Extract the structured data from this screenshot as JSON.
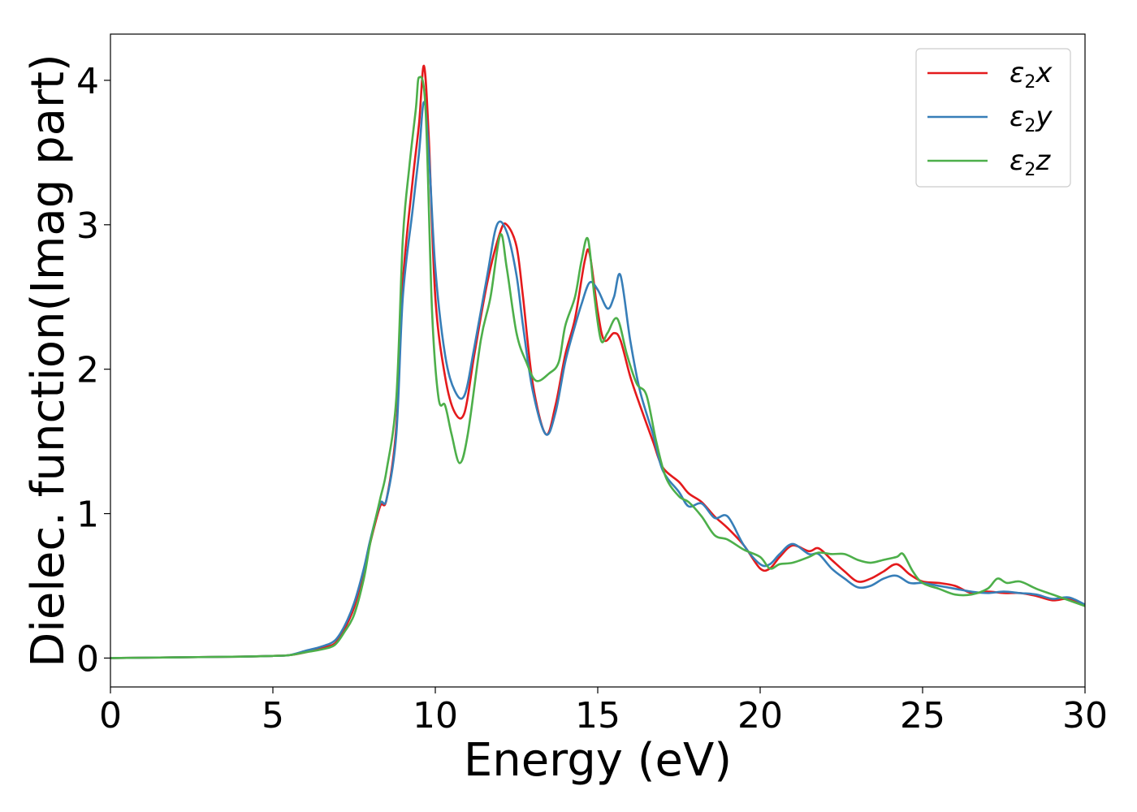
{
  "chart_data": {
    "type": "line",
    "xlabel": "Energy (eV)",
    "ylabel": "Dielec. function(Imag part)",
    "xlim": [
      0,
      30
    ],
    "ylim": [
      -0.2,
      4.32
    ],
    "xticks": [
      0,
      5,
      10,
      15,
      20,
      25,
      30
    ],
    "yticks": [
      0,
      1,
      2,
      3,
      4
    ],
    "grid": false,
    "legend_position": "top-right",
    "series": [
      {
        "name": "ε2x",
        "legend": {
          "base": "ε",
          "sub": "2",
          "var": "x"
        },
        "color": "#e41a1c",
        "x": [
          0,
          2,
          4,
          5,
          5.5,
          6,
          6.5,
          6.9,
          7.2,
          7.5,
          7.8,
          8.0,
          8.3,
          8.5,
          8.8,
          9.0,
          9.3,
          9.5,
          9.65,
          9.8,
          10.0,
          10.3,
          10.6,
          10.9,
          11.2,
          11.6,
          12.0,
          12.2,
          12.5,
          12.7,
          13.0,
          13.4,
          13.7,
          14.0,
          14.3,
          14.6,
          14.75,
          15.0,
          15.2,
          15.5,
          15.7,
          16.0,
          16.3,
          16.7,
          17.0,
          17.5,
          17.8,
          18.2,
          18.6,
          19.0,
          19.5,
          20.0,
          20.3,
          20.6,
          21.0,
          21.5,
          21.8,
          22.2,
          22.6,
          23.0,
          23.4,
          23.8,
          24.2,
          24.6,
          25.0,
          25.5,
          26.0,
          26.5,
          27.0,
          27.5,
          28.0,
          28.5,
          29.0,
          29.5,
          30.0
        ],
        "values": [
          0.0,
          0.005,
          0.01,
          0.015,
          0.02,
          0.04,
          0.07,
          0.1,
          0.2,
          0.35,
          0.6,
          0.8,
          1.05,
          1.1,
          1.6,
          2.6,
          3.3,
          3.7,
          4.1,
          3.6,
          2.5,
          1.95,
          1.7,
          1.7,
          2.1,
          2.6,
          2.95,
          3.0,
          2.85,
          2.5,
          1.9,
          1.55,
          1.75,
          2.1,
          2.35,
          2.75,
          2.8,
          2.4,
          2.2,
          2.25,
          2.2,
          1.95,
          1.75,
          1.5,
          1.32,
          1.22,
          1.14,
          1.08,
          0.98,
          0.9,
          0.78,
          0.62,
          0.62,
          0.7,
          0.78,
          0.74,
          0.76,
          0.68,
          0.6,
          0.53,
          0.55,
          0.6,
          0.65,
          0.58,
          0.53,
          0.52,
          0.5,
          0.45,
          0.46,
          0.45,
          0.45,
          0.43,
          0.4,
          0.41,
          0.37
        ]
      },
      {
        "name": "ε2y",
        "legend": {
          "base": "ε",
          "sub": "2",
          "var": "y"
        },
        "color": "#377eb8",
        "x": [
          0,
          2,
          4,
          5,
          5.5,
          6,
          6.5,
          6.9,
          7.2,
          7.5,
          7.8,
          8.0,
          8.3,
          8.5,
          8.8,
          9.0,
          9.3,
          9.5,
          9.65,
          9.8,
          10.0,
          10.3,
          10.6,
          10.9,
          11.2,
          11.6,
          11.9,
          12.2,
          12.5,
          12.7,
          13.0,
          13.4,
          13.7,
          14.0,
          14.3,
          14.5,
          14.75,
          15.0,
          15.3,
          15.5,
          15.7,
          16.0,
          16.3,
          16.7,
          17.0,
          17.5,
          17.8,
          18.2,
          18.6,
          19.0,
          19.5,
          20.0,
          20.3,
          20.6,
          21.0,
          21.5,
          21.8,
          22.2,
          22.6,
          23.0,
          23.4,
          23.8,
          24.2,
          24.6,
          25.0,
          25.5,
          26.0,
          26.5,
          27.0,
          27.5,
          28.0,
          28.5,
          29.0,
          29.5,
          30.0
        ],
        "values": [
          0.0,
          0.005,
          0.01,
          0.015,
          0.02,
          0.05,
          0.08,
          0.12,
          0.22,
          0.38,
          0.62,
          0.82,
          1.07,
          1.1,
          1.55,
          2.5,
          3.1,
          3.5,
          3.85,
          3.5,
          2.7,
          2.1,
          1.85,
          1.82,
          2.15,
          2.65,
          3.0,
          2.95,
          2.65,
          2.3,
          1.85,
          1.55,
          1.7,
          2.05,
          2.3,
          2.45,
          2.6,
          2.55,
          2.42,
          2.5,
          2.65,
          2.2,
          1.85,
          1.55,
          1.3,
          1.15,
          1.05,
          1.07,
          0.97,
          0.98,
          0.78,
          0.65,
          0.65,
          0.72,
          0.79,
          0.72,
          0.72,
          0.62,
          0.55,
          0.49,
          0.5,
          0.55,
          0.57,
          0.52,
          0.52,
          0.5,
          0.48,
          0.46,
          0.45,
          0.46,
          0.45,
          0.44,
          0.41,
          0.42,
          0.37
        ]
      },
      {
        "name": "ε2z",
        "legend": {
          "base": "ε",
          "sub": "2",
          "var": "z"
        },
        "color": "#4daf4a",
        "x": [
          0,
          2,
          4,
          5,
          5.5,
          6,
          6.5,
          6.9,
          7.2,
          7.5,
          7.8,
          8.0,
          8.3,
          8.5,
          8.8,
          9.0,
          9.2,
          9.4,
          9.5,
          9.7,
          9.9,
          10.1,
          10.3,
          10.5,
          10.75,
          11.0,
          11.4,
          11.7,
          12.0,
          12.2,
          12.5,
          12.8,
          13.1,
          13.5,
          13.8,
          14.0,
          14.3,
          14.5,
          14.7,
          14.9,
          15.1,
          15.3,
          15.6,
          15.9,
          16.2,
          16.5,
          16.8,
          17.1,
          17.5,
          17.8,
          18.2,
          18.6,
          19.0,
          19.5,
          20.0,
          20.3,
          20.6,
          21.0,
          21.5,
          21.8,
          22.2,
          22.6,
          23.0,
          23.4,
          23.8,
          24.2,
          24.4,
          24.7,
          25.0,
          25.5,
          26.0,
          26.5,
          27.0,
          27.3,
          27.6,
          28.0,
          28.5,
          29.0,
          29.5,
          30.0
        ],
        "values": [
          0.0,
          0.005,
          0.01,
          0.015,
          0.02,
          0.04,
          0.06,
          0.09,
          0.18,
          0.3,
          0.55,
          0.8,
          1.1,
          1.3,
          1.8,
          2.9,
          3.4,
          3.8,
          4.02,
          3.8,
          2.4,
          1.8,
          1.75,
          1.55,
          1.35,
          1.55,
          2.2,
          2.5,
          2.93,
          2.7,
          2.25,
          2.05,
          1.92,
          1.97,
          2.05,
          2.3,
          2.5,
          2.75,
          2.9,
          2.5,
          2.2,
          2.25,
          2.35,
          2.1,
          1.9,
          1.82,
          1.5,
          1.25,
          1.12,
          1.08,
          0.98,
          0.85,
          0.82,
          0.75,
          0.7,
          0.62,
          0.65,
          0.66,
          0.7,
          0.73,
          0.72,
          0.72,
          0.68,
          0.66,
          0.68,
          0.7,
          0.72,
          0.6,
          0.52,
          0.48,
          0.44,
          0.44,
          0.48,
          0.55,
          0.52,
          0.53,
          0.48,
          0.44,
          0.4,
          0.36
        ]
      }
    ]
  }
}
